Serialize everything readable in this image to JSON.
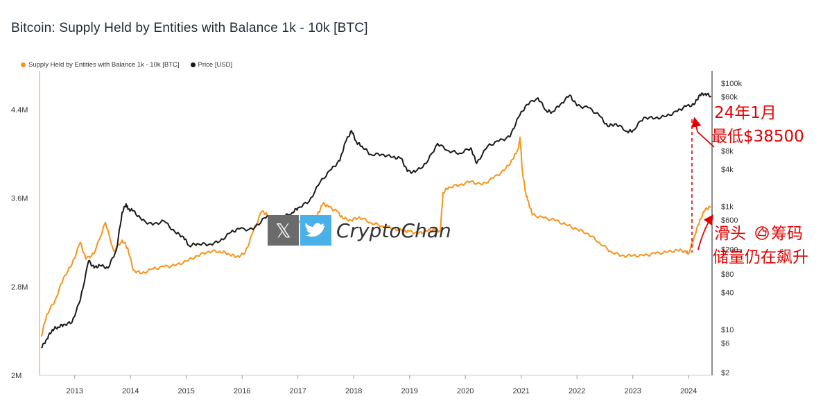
{
  "chart_data": {
    "type": "line",
    "title": "Bitcoin: Supply Held by Entities with Balance 1k - 10k [BTC]",
    "legend": [
      {
        "name": "Supply Held by Entities with Balance 1k - 10k [BTC]",
        "color": "#f7931a"
      },
      {
        "name": "Price [USD]",
        "color": "#1a1a1a"
      }
    ],
    "legend_position": "top-left",
    "grid": false,
    "x_ticks": [
      "2013",
      "2014",
      "2015",
      "2016",
      "2017",
      "2018",
      "2019",
      "2020",
      "2021",
      "2022",
      "2023",
      "2024"
    ],
    "x_range": [
      2012.37,
      2024.42
    ],
    "y_left": {
      "ticks": [
        "2M",
        "2.8M",
        "3.6M",
        "4.4M"
      ],
      "range": [
        2.0,
        4.75
      ],
      "unit": "M BTC"
    },
    "y_right": {
      "scale": "log",
      "ticks": [
        "$2",
        "$6",
        "$10",
        "$40",
        "$80",
        "$200",
        "$600",
        "$1k",
        "$4k",
        "$8k",
        "$60k",
        "$100k"
      ],
      "range": [
        2,
        100000
      ]
    },
    "series": [
      {
        "name": "Supply Held by Entities with Balance 1k - 10k [BTC]",
        "axis": "left",
        "color": "#f7931a",
        "x": [
          2012.4,
          2012.5,
          2012.65,
          2012.8,
          2012.95,
          2013.1,
          2013.2,
          2013.35,
          2013.55,
          2013.7,
          2013.85,
          2013.95,
          2014.05,
          2014.2,
          2014.4,
          2014.6,
          2014.8,
          2015.0,
          2015.2,
          2015.4,
          2015.6,
          2015.75,
          2015.9,
          2016.05,
          2016.2,
          2016.35,
          2016.45,
          2016.55,
          2016.7,
          2016.9,
          2017.05,
          2017.2,
          2017.35,
          2017.45,
          2017.55,
          2017.7,
          2017.8,
          2017.95,
          2018.1,
          2018.3,
          2018.5,
          2018.7,
          2018.9,
          2019.0,
          2019.15,
          2019.3,
          2019.45,
          2019.55,
          2019.6,
          2019.7,
          2019.9,
          2020.1,
          2020.3,
          2020.5,
          2020.7,
          2020.85,
          2020.95,
          2020.98,
          2021.02,
          2021.08,
          2021.12,
          2021.2,
          2021.4,
          2021.6,
          2021.8,
          2022.0,
          2022.2,
          2022.4,
          2022.6,
          2022.8,
          2023.0,
          2023.2,
          2023.4,
          2023.6,
          2023.8,
          2023.95,
          2024.0,
          2024.1,
          2024.2,
          2024.3,
          2024.4
        ],
        "y": [
          2.35,
          2.55,
          2.68,
          2.88,
          3.0,
          3.2,
          3.05,
          3.1,
          3.38,
          3.12,
          3.22,
          3.15,
          2.95,
          2.92,
          2.96,
          2.98,
          2.99,
          3.03,
          3.08,
          3.12,
          3.12,
          3.1,
          3.07,
          3.1,
          3.3,
          3.48,
          3.45,
          3.38,
          3.3,
          3.36,
          3.4,
          3.35,
          3.45,
          3.55,
          3.52,
          3.48,
          3.42,
          3.4,
          3.43,
          3.38,
          3.35,
          3.33,
          3.3,
          3.3,
          3.28,
          3.3,
          3.32,
          3.3,
          3.65,
          3.7,
          3.72,
          3.75,
          3.72,
          3.78,
          3.85,
          3.95,
          4.05,
          4.15,
          3.85,
          3.65,
          3.58,
          3.45,
          3.42,
          3.4,
          3.36,
          3.32,
          3.28,
          3.2,
          3.12,
          3.08,
          3.08,
          3.08,
          3.1,
          3.11,
          3.13,
          3.12,
          3.1,
          3.25,
          3.4,
          3.5,
          3.52
        ]
      },
      {
        "name": "Price [USD]",
        "axis": "right",
        "color": "#1a1a1a",
        "x": [
          2012.4,
          2012.5,
          2012.6,
          2012.7,
          2012.8,
          2012.95,
          2013.1,
          2013.25,
          2013.35,
          2013.45,
          2013.6,
          2013.75,
          2013.85,
          2013.92,
          2013.96,
          2014.05,
          2014.2,
          2014.4,
          2014.6,
          2014.8,
          2014.95,
          2015.05,
          2015.2,
          2015.4,
          2015.6,
          2015.8,
          2015.95,
          2016.2,
          2016.4,
          2016.55,
          2016.7,
          2016.9,
          2017.0,
          2017.2,
          2017.4,
          2017.6,
          2017.75,
          2017.85,
          2017.96,
          2018.05,
          2018.15,
          2018.3,
          2018.5,
          2018.7,
          2018.85,
          2018.96,
          2019.1,
          2019.3,
          2019.5,
          2019.7,
          2019.9,
          2020.1,
          2020.2,
          2020.4,
          2020.6,
          2020.8,
          2020.95,
          2021.1,
          2021.3,
          2021.45,
          2021.55,
          2021.7,
          2021.87,
          2022.0,
          2022.2,
          2022.4,
          2022.55,
          2022.7,
          2022.9,
          2023.0,
          2023.2,
          2023.4,
          2023.6,
          2023.8,
          2023.95,
          2024.1,
          2024.2,
          2024.3,
          2024.4
        ],
        "y": [
          5,
          7,
          10,
          11,
          12,
          13,
          30,
          130,
          100,
          110,
          100,
          200,
          800,
          1100,
          900,
          850,
          600,
          500,
          580,
          380,
          320,
          230,
          250,
          240,
          270,
          380,
          430,
          420,
          650,
          700,
          640,
          800,
          950,
          1200,
          2500,
          4000,
          5500,
          11000,
          17000,
          11000,
          9500,
          7000,
          7000,
          6300,
          6000,
          3700,
          3600,
          5000,
          10500,
          8000,
          7300,
          8900,
          5000,
          9500,
          11500,
          13500,
          28000,
          45000,
          58000,
          36000,
          34000,
          45000,
          64000,
          43000,
          40000,
          30000,
          20000,
          22000,
          16500,
          17000,
          28000,
          27000,
          29000,
          35000,
          42000,
          45000,
          65000,
          68000,
          62000
        ]
      }
    ],
    "annotations": [
      {
        "text": "24年1月",
        "color": "#e30000"
      },
      {
        "text": "最低$38500",
        "color": "#e30000"
      },
      {
        "text": "滑头",
        "color": "#e30000"
      },
      {
        "text": "筹码",
        "color": "#e30000"
      },
      {
        "text": "储量仍在飙升",
        "color": "#e30000"
      }
    ],
    "watermark": "CryptoChan"
  }
}
